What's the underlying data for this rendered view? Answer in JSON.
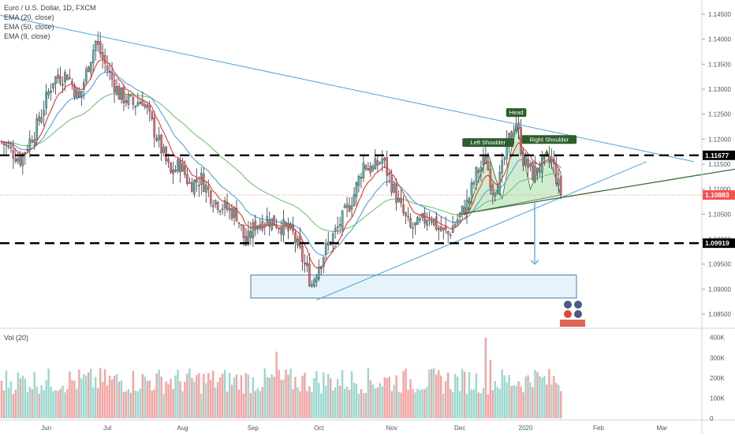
{
  "legend": {
    "title": "Euro / U.S. Dollar, 1D, FXCM",
    "lines": [
      "EMA (20, close)",
      "EMA (50, close)",
      "EMA (9, close)"
    ]
  },
  "volume_label": "Vol (20)",
  "colors": {
    "up": "#53b9a9",
    "down": "#ef6b6b",
    "up_vol": "#9ad8cf",
    "down_vol": "#f4a3a3",
    "ema9": "#e53935",
    "ema20": "#4fa3e0",
    "ema50": "#74c374",
    "trend": "#4aa3df",
    "neckline": "#3d6b35",
    "label_bg": "#2e5e2e",
    "current_bg": "#ef5350"
  },
  "chart_data": {
    "type": "candlestick",
    "symbol": "Euro / U.S. Dollar, 1D, FXCM",
    "y_axis_ticks": [
      "1.14500",
      "1.14000",
      "1.13500",
      "1.13000",
      "1.12500",
      "1.12000",
      "1.11500",
      "1.11000",
      "1.10500",
      "1.10000",
      "1.09500",
      "1.09000",
      "1.08500"
    ],
    "ylim": [
      1.0825,
      1.1475
    ],
    "x_axis_ticks": [
      "Jun",
      "Jul",
      "Aug",
      "Sep",
      "Oct",
      "Nov",
      "Dec",
      "2020",
      "Feb",
      "Mar"
    ],
    "price_markers": [
      {
        "label": "1.11677",
        "value": 1.11677,
        "style": "resistance"
      },
      {
        "label": "1.10883",
        "value": 1.10883,
        "style": "current"
      },
      {
        "label": "1.09919",
        "value": 1.09919,
        "style": "support"
      }
    ],
    "annotations": [
      "Left Shoulder",
      "Head",
      "Right Shoulder"
    ],
    "volume_axis_ticks": [
      "400K",
      "300K",
      "200K",
      "100K",
      "0"
    ],
    "series_keypoints": [
      {
        "t": 0,
        "p": 1.1195
      },
      {
        "t": 8,
        "p": 1.116
      },
      {
        "t": 15,
        "p": 1.1225
      },
      {
        "t": 22,
        "p": 1.132
      },
      {
        "t": 28,
        "p": 1.133
      },
      {
        "t": 33,
        "p": 1.128
      },
      {
        "t": 37,
        "p": 1.135
      },
      {
        "t": 40,
        "p": 1.1395
      },
      {
        "t": 44,
        "p": 1.135
      },
      {
        "t": 50,
        "p": 1.129
      },
      {
        "t": 56,
        "p": 1.127
      },
      {
        "t": 60,
        "p": 1.128
      },
      {
        "t": 66,
        "p": 1.1205
      },
      {
        "t": 72,
        "p": 1.113
      },
      {
        "t": 76,
        "p": 1.115
      },
      {
        "t": 80,
        "p": 1.111
      },
      {
        "t": 85,
        "p": 1.112
      },
      {
        "t": 90,
        "p": 1.108
      },
      {
        "t": 96,
        "p": 1.106
      },
      {
        "t": 100,
        "p": 1.105
      },
      {
        "t": 104,
        "p": 1.099
      },
      {
        "t": 108,
        "p": 1.103
      },
      {
        "t": 113,
        "p": 1.104
      },
      {
        "t": 118,
        "p": 1.103
      },
      {
        "t": 124,
        "p": 1.101
      },
      {
        "t": 128,
        "p": 1.096
      },
      {
        "t": 132,
        "p": 1.091
      },
      {
        "t": 135,
        "p": 1.095
      },
      {
        "t": 139,
        "p": 1.099
      },
      {
        "t": 144,
        "p": 1.103
      },
      {
        "t": 150,
        "p": 1.109
      },
      {
        "t": 154,
        "p": 1.115
      },
      {
        "t": 158,
        "p": 1.114
      },
      {
        "t": 162,
        "p": 1.116
      },
      {
        "t": 166,
        "p": 1.111
      },
      {
        "t": 170,
        "p": 1.106
      },
      {
        "t": 174,
        "p": 1.102
      },
      {
        "t": 178,
        "p": 1.103
      },
      {
        "t": 182,
        "p": 1.105
      },
      {
        "t": 186,
        "p": 1.102
      },
      {
        "t": 190,
        "p": 1.101
      },
      {
        "t": 194,
        "p": 1.104
      },
      {
        "t": 198,
        "p": 1.107
      },
      {
        "t": 202,
        "p": 1.113
      },
      {
        "t": 206,
        "p": 1.116
      },
      {
        "t": 209,
        "p": 1.11
      },
      {
        "t": 212,
        "p": 1.112
      },
      {
        "t": 216,
        "p": 1.12
      },
      {
        "t": 219,
        "p": 1.1235
      },
      {
        "t": 222,
        "p": 1.116
      },
      {
        "t": 226,
        "p": 1.113
      },
      {
        "t": 230,
        "p": 1.115
      },
      {
        "t": 234,
        "p": 1.116
      },
      {
        "t": 238,
        "p": 1.1088
      }
    ]
  }
}
